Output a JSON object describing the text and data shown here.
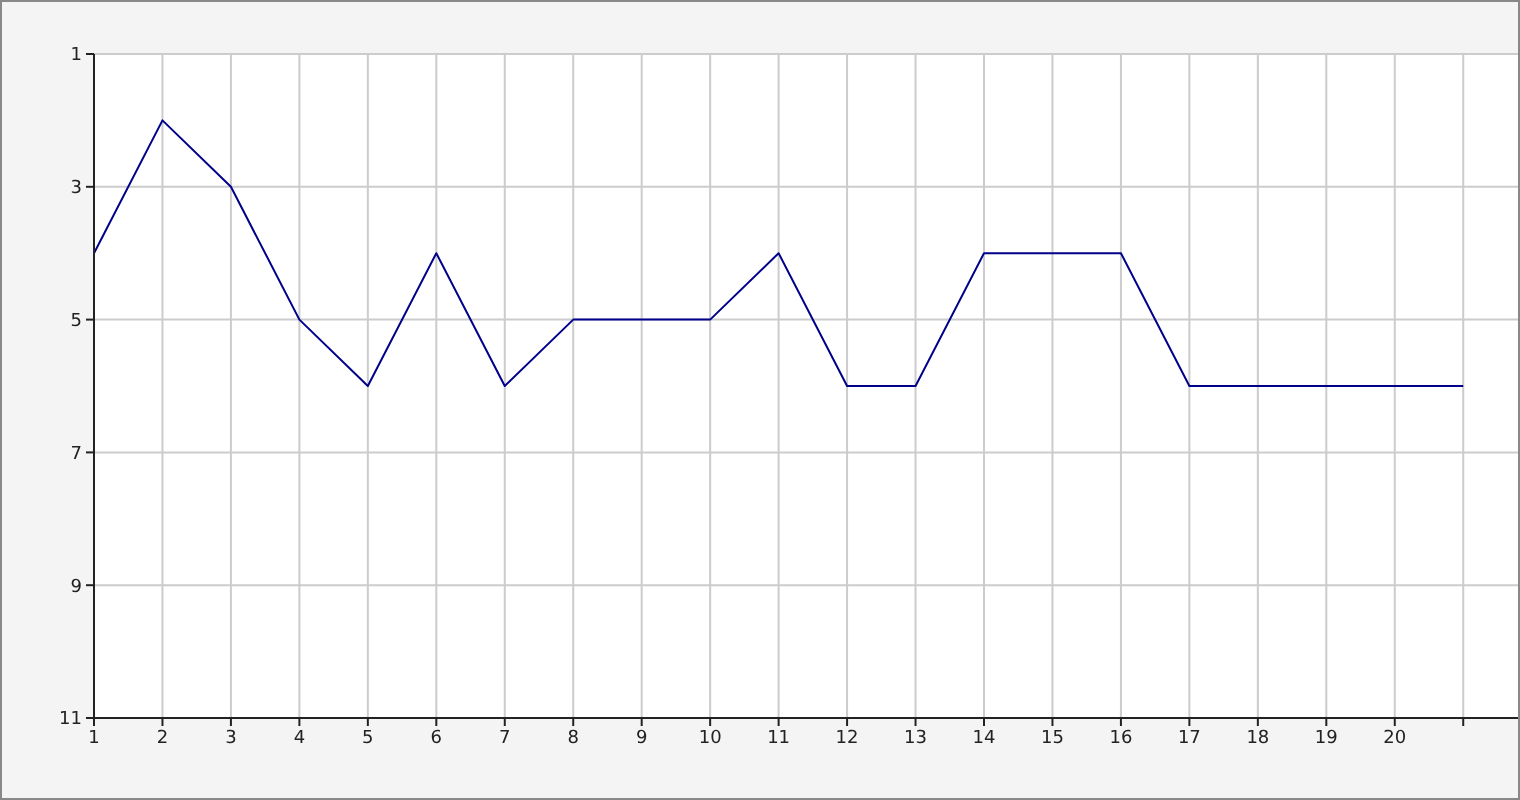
{
  "chart_data": {
    "type": "line",
    "x": [
      1,
      2,
      3,
      4,
      5,
      6,
      7,
      8,
      9,
      10,
      11,
      12,
      13,
      14,
      15,
      16,
      17,
      18,
      19,
      20,
      21
    ],
    "series": [
      {
        "color": "#00008b",
        "values": [
          4,
          2,
          3,
          5,
          6,
          4,
          6,
          5,
          5,
          5,
          4,
          6,
          6,
          4,
          4,
          4,
          6,
          6,
          6,
          6,
          6
        ]
      }
    ],
    "xlim": [
      1,
      21.8
    ],
    "xticks": [
      1,
      2,
      3,
      4,
      5,
      6,
      7,
      8,
      9,
      10,
      11,
      12,
      13,
      14,
      15,
      16,
      17,
      18,
      19,
      20,
      {
        "value": 21,
        "label": null
      }
    ],
    "ylim": [
      11,
      1
    ],
    "yticks": [
      1,
      3,
      5,
      7,
      9,
      11
    ],
    "grid": true,
    "marker": "none",
    "line_style": "solid",
    "legend": false
  }
}
